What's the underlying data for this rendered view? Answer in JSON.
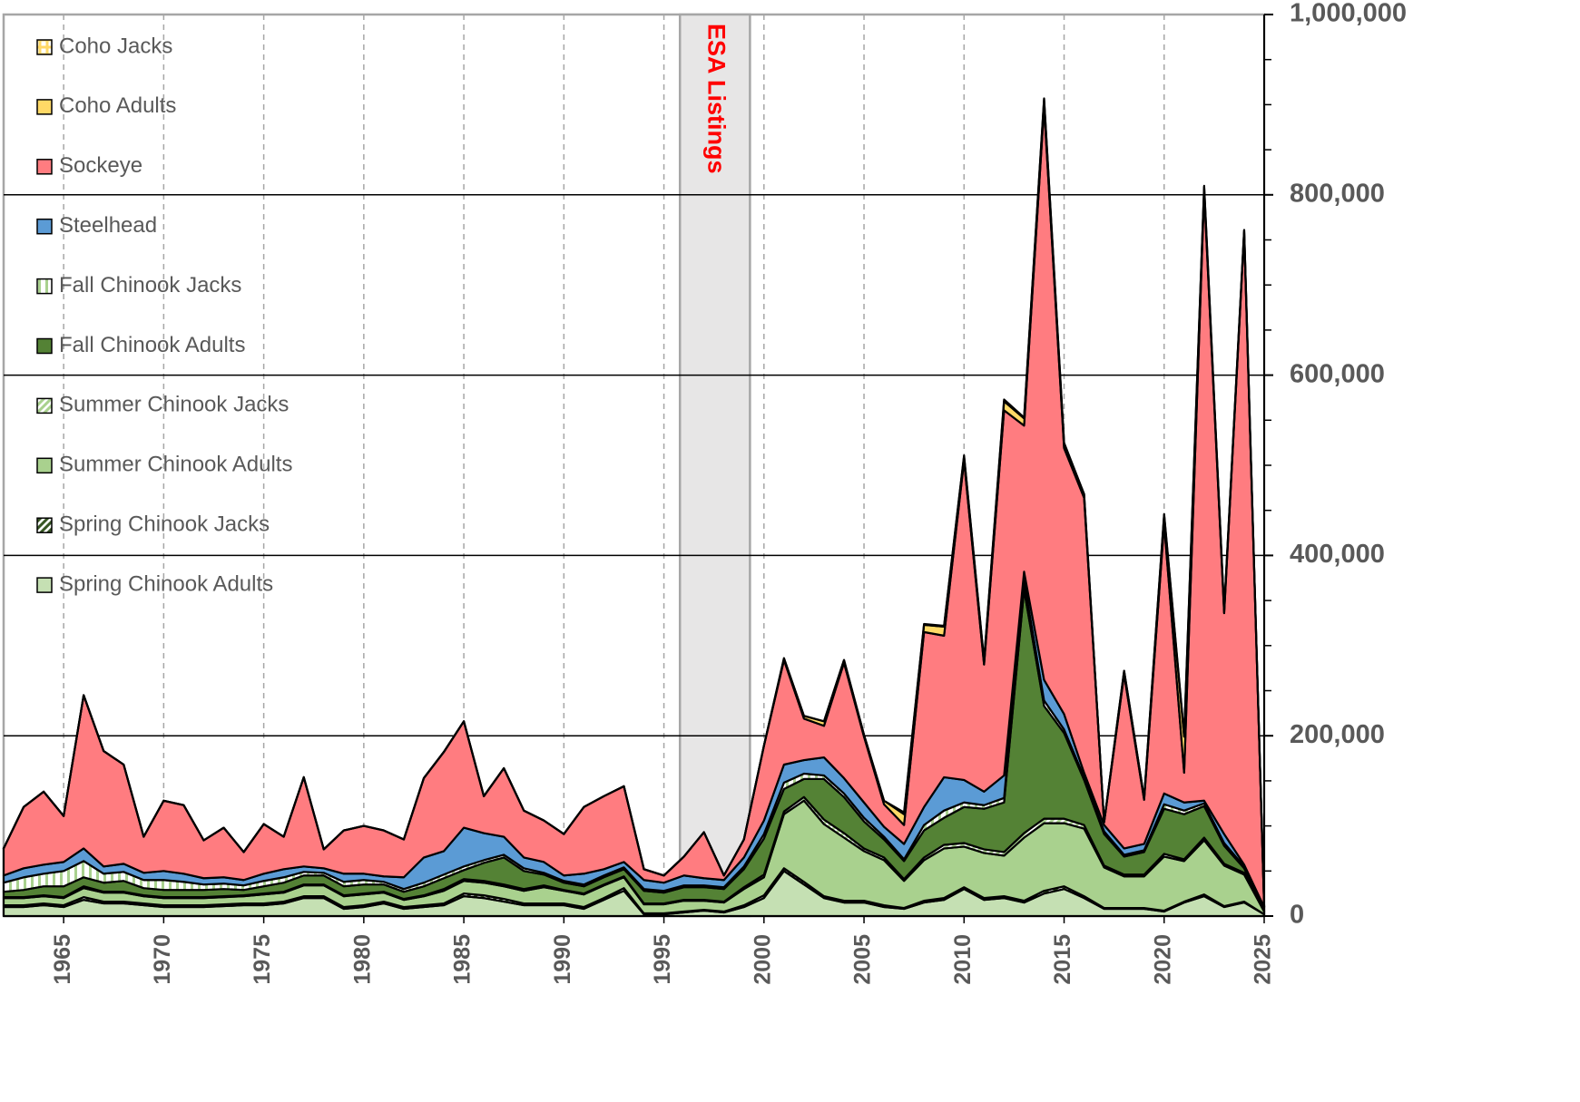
{
  "chart_data": {
    "type": "stacked_area",
    "x": [
      1962,
      1963,
      1964,
      1965,
      1966,
      1967,
      1968,
      1969,
      1970,
      1971,
      1972,
      1973,
      1974,
      1975,
      1976,
      1977,
      1978,
      1979,
      1980,
      1981,
      1982,
      1983,
      1984,
      1985,
      1986,
      1987,
      1988,
      1989,
      1990,
      1991,
      1992,
      1993,
      1994,
      1995,
      1996,
      1997,
      1998,
      1999,
      2000,
      2001,
      2002,
      2003,
      2004,
      2005,
      2006,
      2007,
      2008,
      2009,
      2010,
      2011,
      2012,
      2013,
      2014,
      2015,
      2016,
      2017,
      2018,
      2019,
      2020,
      2021,
      2022,
      2023,
      2024,
      2025
    ],
    "xlim": [
      1962,
      2025
    ],
    "xticks": [
      1965,
      1970,
      1975,
      1980,
      1985,
      1990,
      1995,
      2000,
      2005,
      2010,
      2015,
      2020,
      2025
    ],
    "ylim": [
      0,
      1000000
    ],
    "yticks": [
      {
        "value": 0,
        "label": "0"
      },
      {
        "value": 200000,
        "label": "200,000"
      },
      {
        "value": 400000,
        "label": "400,000"
      },
      {
        "value": 600000,
        "label": "600,000"
      },
      {
        "value": 800000,
        "label": "800,000"
      },
      {
        "value": 1000000,
        "label": "1,000,000"
      }
    ],
    "yminorticks": [
      50000,
      100000,
      150000,
      250000,
      300000,
      350000,
      450000,
      500000,
      550000,
      650000,
      700000,
      750000,
      850000,
      900000,
      950000
    ],
    "grid": true,
    "legend": "upper left",
    "annotations": [
      {
        "text": "ESA Listings",
        "xspan": [
          1995.8,
          1999.3
        ]
      }
    ],
    "series": [
      {
        "name": "Spring Chinook Adults",
        "color": "#c5e0b3",
        "values": [
          10000,
          10000,
          12000,
          10000,
          18000,
          14000,
          14000,
          12000,
          10000,
          10000,
          10000,
          11000,
          12000,
          12000,
          14000,
          20000,
          20000,
          8000,
          10000,
          14000,
          8000,
          10000,
          12000,
          22000,
          20000,
          16000,
          12000,
          12000,
          12000,
          8000,
          18000,
          28000,
          2000,
          2000,
          4000,
          6000,
          4000,
          10000,
          20000,
          50000,
          35000,
          20000,
          15000,
          15000,
          10000,
          8000,
          15000,
          18000,
          30000,
          18000,
          20000,
          15000,
          25000,
          30000,
          20000,
          8000,
          8000,
          8000,
          5000,
          15000,
          22000,
          10000,
          15000,
          2000
        ]
      },
      {
        "name": "Spring Chinook Jacks",
        "color": "#375623",
        "pattern": "diagonal",
        "values": [
          2000,
          2000,
          2000,
          2000,
          3000,
          2000,
          2000,
          2000,
          2000,
          2000,
          2000,
          2000,
          2000,
          2000,
          2000,
          2000,
          2000,
          2000,
          2000,
          2000,
          2000,
          2000,
          2000,
          3000,
          3000,
          3000,
          2000,
          2000,
          2000,
          2000,
          2000,
          3000,
          1000,
          1000,
          1000,
          1000,
          1000,
          2000,
          3000,
          3000,
          3000,
          2000,
          2000,
          2000,
          2000,
          1000,
          2000,
          2000,
          2000,
          2000,
          2000,
          2000,
          3000,
          3000,
          2000,
          1000,
          1000,
          1000,
          1000,
          1000,
          2000,
          1000,
          1000,
          0
        ]
      },
      {
        "name": "Summer Chinook Adults",
        "color": "#a9d18e",
        "values": [
          8000,
          8000,
          8000,
          8000,
          10000,
          10000,
          10000,
          8000,
          8000,
          8000,
          8000,
          8000,
          8000,
          10000,
          10000,
          12000,
          12000,
          12000,
          12000,
          10000,
          8000,
          10000,
          14000,
          14000,
          14000,
          14000,
          14000,
          18000,
          14000,
          14000,
          14000,
          12000,
          10000,
          10000,
          12000,
          10000,
          10000,
          18000,
          20000,
          60000,
          90000,
          80000,
          70000,
          55000,
          50000,
          30000,
          45000,
          55000,
          45000,
          50000,
          45000,
          70000,
          75000,
          70000,
          75000,
          45000,
          35000,
          35000,
          60000,
          45000,
          60000,
          45000,
          30000,
          3000
        ]
      },
      {
        "name": "Summer Chinook Jacks",
        "color": "#a9d18e",
        "pattern": "diagonal",
        "values": [
          1000,
          1000,
          1000,
          1000,
          2000,
          1000,
          1000,
          1000,
          1000,
          1000,
          1000,
          1000,
          1000,
          1000,
          1000,
          1000,
          1000,
          1000,
          1000,
          1000,
          1000,
          1000,
          2000,
          2000,
          2000,
          2000,
          2000,
          2000,
          1000,
          1000,
          1000,
          1000,
          1000,
          1000,
          1000,
          1000,
          1000,
          2000,
          3000,
          3000,
          4000,
          5000,
          5000,
          3000,
          3000,
          2000,
          3000,
          4000,
          4000,
          4000,
          4000,
          5000,
          5000,
          5000,
          4000,
          2000,
          2000,
          2000,
          3000,
          2000,
          3000,
          2000,
          2000,
          0
        ]
      },
      {
        "name": "Fall Chinook Adults",
        "color": "#548235",
        "values": [
          6000,
          8000,
          10000,
          12000,
          10000,
          10000,
          12000,
          8000,
          8000,
          8000,
          8000,
          8000,
          6000,
          8000,
          10000,
          10000,
          10000,
          10000,
          10000,
          8000,
          8000,
          10000,
          12000,
          10000,
          20000,
          30000,
          20000,
          12000,
          8000,
          8000,
          8000,
          8000,
          14000,
          12000,
          14000,
          14000,
          14000,
          20000,
          40000,
          25000,
          20000,
          45000,
          40000,
          30000,
          20000,
          20000,
          30000,
          30000,
          40000,
          45000,
          55000,
          270000,
          125000,
          95000,
          50000,
          35000,
          20000,
          25000,
          50000,
          50000,
          35000,
          20000,
          5000,
          2000
        ]
      },
      {
        "name": "Fall Chinook Jacks",
        "color": "#a9d18e",
        "pattern": "vertical",
        "values": [
          10000,
          14000,
          14000,
          17000,
          18000,
          10000,
          10000,
          9000,
          11000,
          9000,
          6000,
          6000,
          5000,
          6000,
          6000,
          4000,
          3000,
          5000,
          5000,
          3000,
          3000,
          4000,
          4000,
          4000,
          3000,
          3000,
          3000,
          2000,
          2000,
          2000,
          2000,
          2000,
          2000,
          2000,
          2000,
          2000,
          2000,
          3000,
          5000,
          7000,
          6000,
          4000,
          4000,
          4000,
          3000,
          2000,
          6000,
          8000,
          5000,
          4000,
          5000,
          10000,
          6000,
          4000,
          3000,
          3000,
          2000,
          2000,
          5000,
          4000,
          3000,
          3000,
          2000,
          1000
        ]
      },
      {
        "name": "Steelhead",
        "color": "#5b9bd5",
        "values": [
          8000,
          10000,
          10000,
          10000,
          14000,
          8000,
          9000,
          8000,
          10000,
          9000,
          7000,
          7000,
          6000,
          8000,
          9000,
          6000,
          5000,
          9000,
          7000,
          6000,
          13000,
          28000,
          26000,
          43000,
          30000,
          20000,
          12000,
          12000,
          6000,
          12000,
          7000,
          6000,
          10000,
          9000,
          11000,
          8000,
          8000,
          10000,
          15000,
          20000,
          15000,
          20000,
          17000,
          17000,
          11000,
          17000,
          20000,
          37000,
          25000,
          15000,
          25000,
          10000,
          23000,
          17000,
          5000,
          7000,
          7000,
          7000,
          12000,
          9000,
          3000,
          10000,
          2000,
          2000
        ]
      },
      {
        "name": "Sockeye",
        "color": "#ff7c80",
        "values": [
          30000,
          68000,
          81000,
          51000,
          170000,
          128000,
          110000,
          40000,
          78000,
          76000,
          42000,
          55000,
          31000,
          55000,
          36000,
          99000,
          21000,
          48000,
          53000,
          51000,
          42000,
          88000,
          110000,
          118000,
          41000,
          76000,
          52000,
          46000,
          46000,
          74000,
          81000,
          84000,
          12000,
          8000,
          21000,
          51000,
          5000,
          20000,
          83000,
          116000,
          46000,
          35000,
          128000,
          73000,
          25000,
          21000,
          194000,
          157000,
          354000,
          141000,
          405000,
          162000,
          636000,
          295000,
          305000,
          3000,
          193000,
          49000,
          299000,
          33000,
          676000,
          245000,
          701000,
          0
        ]
      },
      {
        "name": "Coho Adults",
        "color": "#ffd966",
        "values": [
          0,
          0,
          0,
          0,
          0,
          0,
          0,
          0,
          0,
          0,
          0,
          0,
          0,
          0,
          0,
          0,
          0,
          0,
          0,
          0,
          0,
          0,
          0,
          0,
          0,
          0,
          0,
          0,
          0,
          0,
          0,
          0,
          0,
          0,
          0,
          0,
          0,
          0,
          0,
          2000,
          3000,
          5000,
          3000,
          2000,
          4000,
          12000,
          8000,
          10000,
          5000,
          4000,
          10000,
          8000,
          8000,
          5000,
          4000,
          0,
          4000,
          2000,
          10000,
          40000,
          5000,
          3000,
          3000,
          0
        ]
      },
      {
        "name": "Coho Jacks",
        "color": "#ffd966",
        "pattern": "grid",
        "values": [
          0,
          0,
          0,
          0,
          0,
          0,
          0,
          0,
          0,
          0,
          0,
          0,
          0,
          0,
          0,
          0,
          0,
          0,
          0,
          0,
          0,
          0,
          0,
          0,
          0,
          0,
          0,
          0,
          0,
          0,
          0,
          0,
          0,
          0,
          0,
          0,
          0,
          0,
          0,
          0,
          0,
          0,
          0,
          0,
          0,
          2000,
          1000,
          1000,
          1000,
          1000,
          2000,
          1000,
          1000,
          1000,
          0,
          0,
          0,
          0,
          1000,
          2000,
          1000,
          0,
          0,
          0
        ]
      }
    ]
  }
}
